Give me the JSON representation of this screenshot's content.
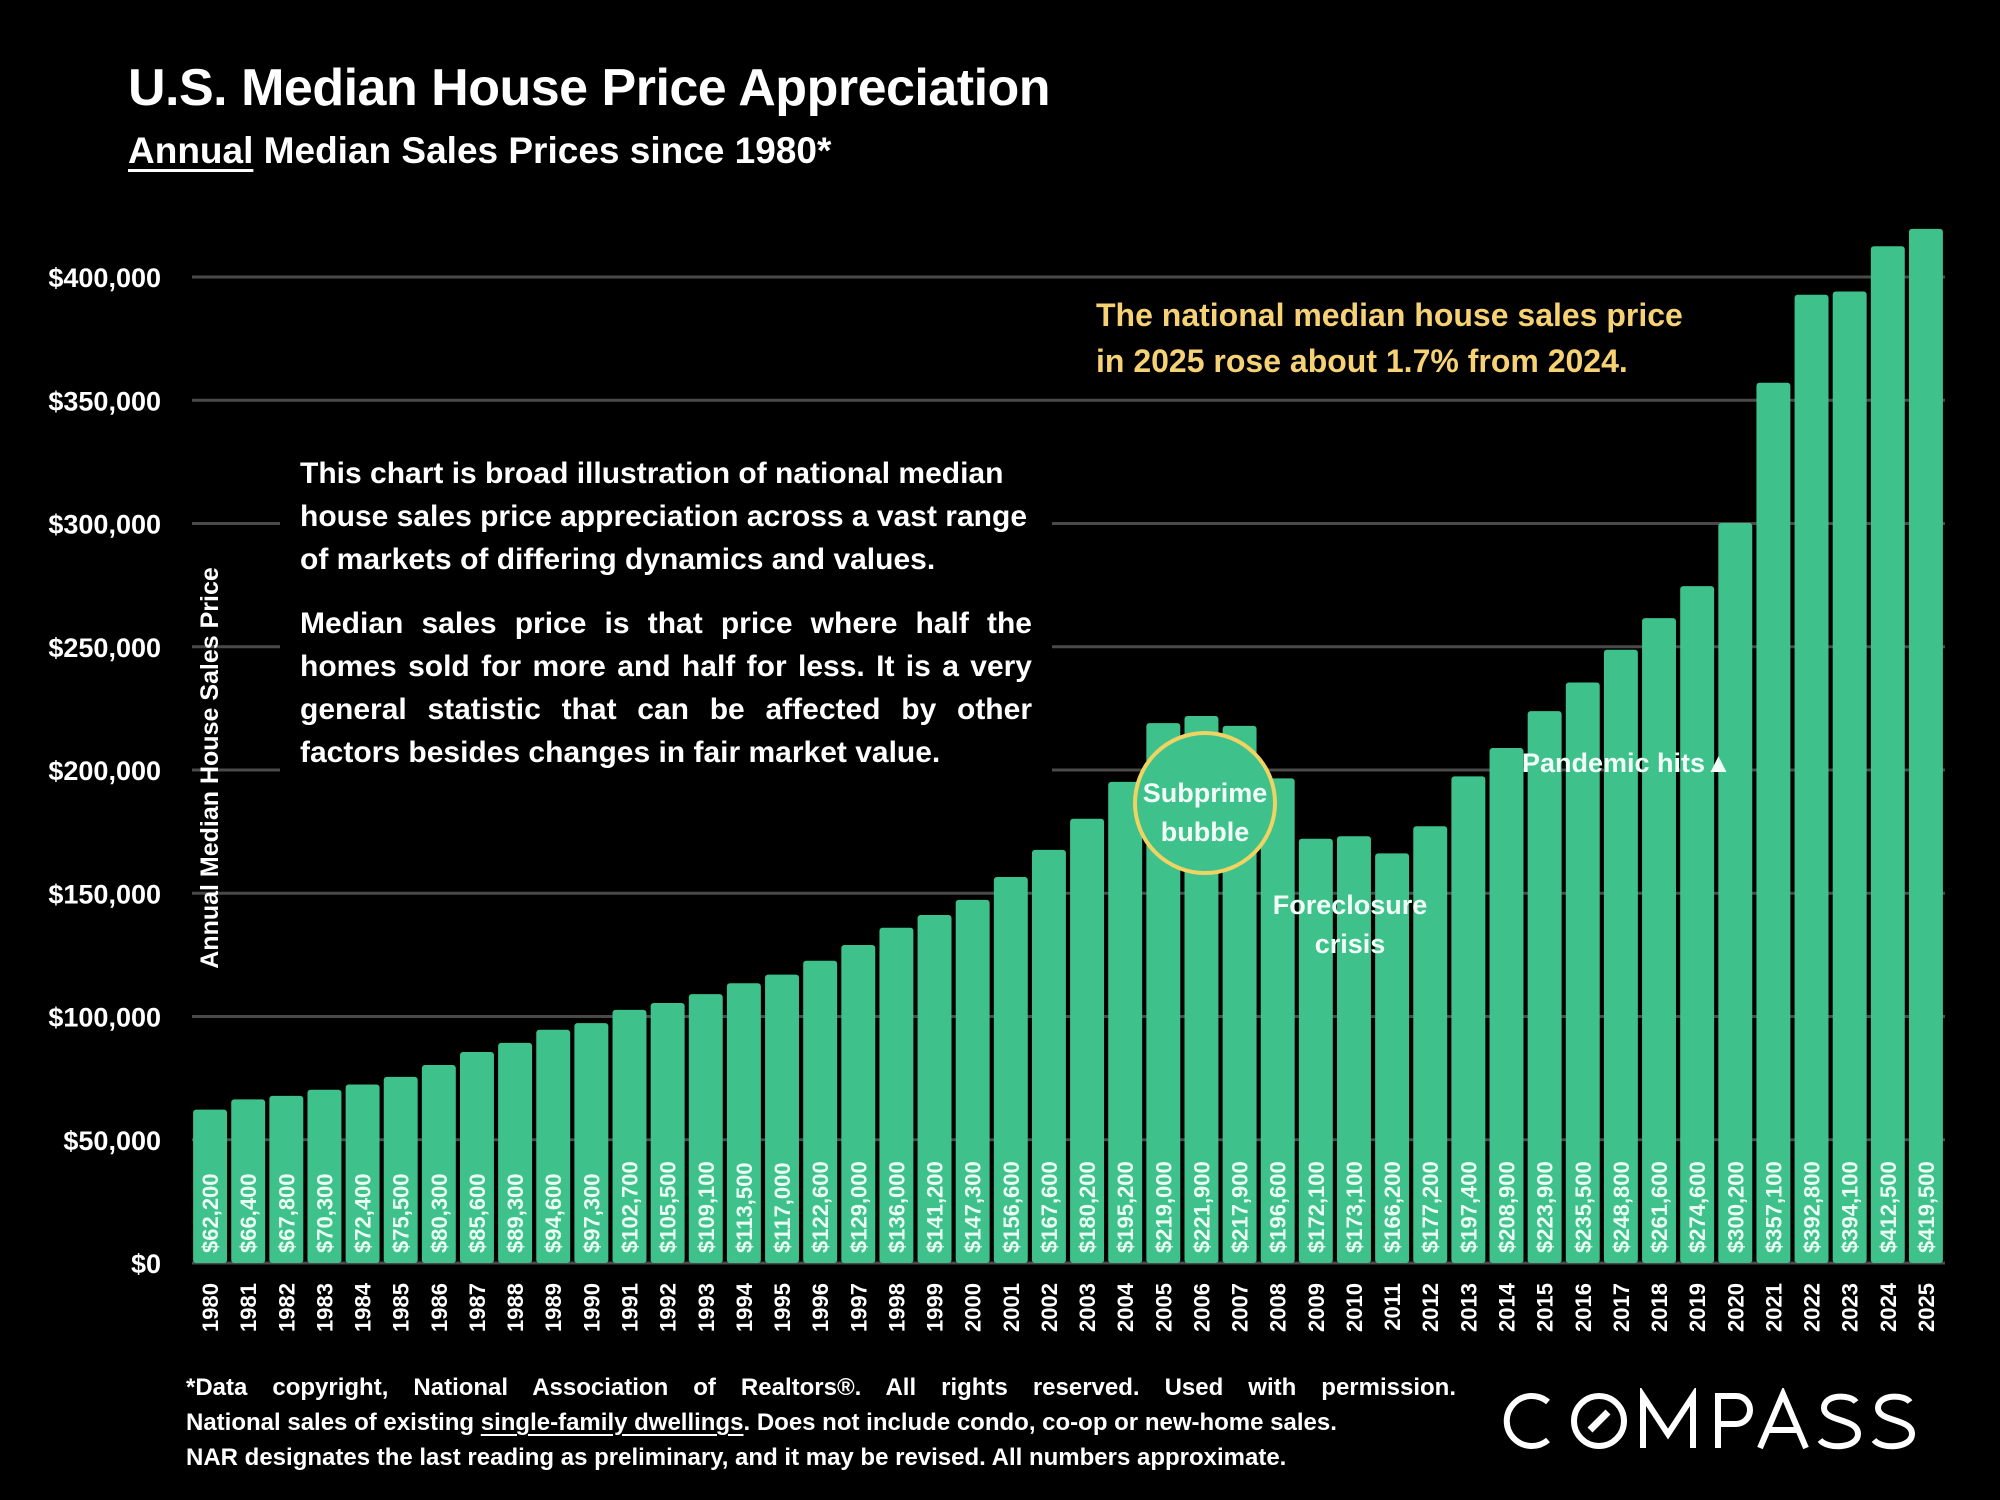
{
  "header": {
    "title": "U.S. Median House Price Appreciation",
    "subtitle_underlined": "Annual",
    "subtitle_rest": " Median Sales Prices since 1980*"
  },
  "notes": {
    "paragraph1": "This chart is broad illustration of national median house sales price appreciation across a vast range of markets of differing dynamics and values.",
    "paragraph2": "Median sales price is that price where half the homes sold for more and half for less. It is a very general statistic that can be affected by other factors besides changes in fair market value."
  },
  "highlight": {
    "line1": "The national median house sales price",
    "line2": "in 2025 rose about 1.7% from 2024."
  },
  "annotations": {
    "subprime_line1": "Subprime",
    "subprime_line2": "bubble",
    "foreclosure_line1": "Foreclosure",
    "foreclosure_line2": "crisis",
    "pandemic": "Pandemic hits",
    "pandemic_icon": "up-triangle"
  },
  "footer": {
    "line1": "*Data copyright, National Association of Realtors®. All rights reserved. Used with permission.",
    "line2_a": "National sales of existing ",
    "line2_link": "single-family dwellings",
    "line2_b": ". Does not include condo, co-op or new-home sales.",
    "line3": "NAR designates the last reading as preliminary, and it may be revised. All numbers approximate."
  },
  "brand": {
    "logo_text": "COMPASS"
  },
  "colors": {
    "background": "#000000",
    "bar": "#3ec18a",
    "gridline": "#4a4a4a",
    "highlight_text": "#f6d275",
    "circle_stroke": "#f0d463"
  },
  "chart_data": {
    "type": "bar",
    "title": "U.S. Median House Price Appreciation",
    "subtitle": "Annual Median Sales Prices since 1980*",
    "xlabel": "",
    "ylabel": "Annual Median House Sales Price",
    "ylim": [
      0,
      400000
    ],
    "yticks": [
      0,
      50000,
      100000,
      150000,
      200000,
      250000,
      300000,
      350000,
      400000
    ],
    "ytick_labels": [
      "$0",
      "$50,000",
      "$100,000",
      "$150,000",
      "$200,000",
      "$250,000",
      "$300,000",
      "$350,000",
      "$400,000"
    ],
    "grid": true,
    "legend": "none",
    "categories": [
      "1980",
      "1981",
      "1982",
      "1983",
      "1984",
      "1985",
      "1986",
      "1987",
      "1988",
      "1989",
      "1990",
      "1991",
      "1992",
      "1993",
      "1994",
      "1995",
      "1996",
      "1997",
      "1998",
      "1999",
      "2000",
      "2001",
      "2002",
      "2003",
      "2004",
      "2005",
      "2006",
      "2007",
      "2008",
      "2009",
      "2010",
      "2011",
      "2012",
      "2013",
      "2014",
      "2015",
      "2016",
      "2017",
      "2018",
      "2019",
      "2020",
      "2021",
      "2022",
      "2023",
      "2024",
      "2025"
    ],
    "values": [
      62200,
      66400,
      67800,
      70300,
      72400,
      75500,
      80300,
      85600,
      89300,
      94600,
      97300,
      102700,
      105500,
      109100,
      113500,
      117000,
      122600,
      129000,
      136000,
      141200,
      147300,
      156600,
      167600,
      180200,
      195200,
      219000,
      221900,
      217900,
      196600,
      172100,
      173100,
      166200,
      177200,
      197400,
      208900,
      223900,
      235500,
      248800,
      261600,
      274600,
      300200,
      357100,
      392800,
      394100,
      412500,
      419500
    ],
    "data_labels": [
      "$62,200",
      "$66,400",
      "$67,800",
      "$70,300",
      "$72,400",
      "$75,500",
      "$80,300",
      "$85,600",
      "$89,300",
      "$94,600",
      "$97,300",
      "$102,700",
      "$105,500",
      "$109,100",
      "$113,500",
      "$117,000",
      "$122,600",
      "$129,000",
      "$136,000",
      "$141,200",
      "$147,300",
      "$156,600",
      "$167,600",
      "$180,200",
      "$195,200",
      "$219,000",
      "$221,900",
      "$217,900",
      "$196,600",
      "$172,100",
      "$173,100",
      "$166,200",
      "$177,200",
      "$197,400",
      "$208,900",
      "$223,900",
      "$235,500",
      "$248,800",
      "$261,600",
      "$274,600",
      "$300,200",
      "$357,100",
      "$392,800",
      "$394,100",
      "$412,500",
      "$419,500"
    ],
    "annotations": [
      {
        "text": "Subprime bubble",
        "near": "2006"
      },
      {
        "text": "Foreclosure crisis",
        "near": "2010"
      },
      {
        "text": "Pandemic hits",
        "near": "2020"
      },
      {
        "text": "The national median house sales price in 2025 rose about 1.7% from 2024.",
        "near": "top-right"
      }
    ]
  }
}
